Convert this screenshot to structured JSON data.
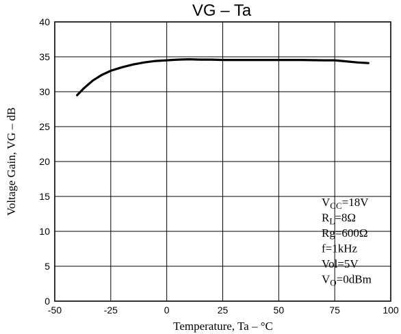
{
  "chart_data": {
    "type": "line",
    "title": "VG  –  Ta",
    "xlabel": "Temperature,  Ta  –  °C",
    "ylabel": "Voltage Gain,  VG  –  dB",
    "xlim": [
      -50,
      100
    ],
    "ylim": [
      0,
      40
    ],
    "xticks": [
      -50,
      -25,
      0,
      25,
      50,
      75,
      100
    ],
    "yticks": [
      0,
      5,
      10,
      15,
      20,
      25,
      30,
      35,
      40
    ],
    "grid": true,
    "series": [
      {
        "x": [
          -40,
          -37,
          -33,
          -29,
          -25,
          -20,
          -15,
          -10,
          -5,
          0,
          5,
          10,
          15,
          20,
          25,
          30,
          40,
          50,
          60,
          70,
          75,
          80,
          85,
          90
        ],
        "y": [
          29.5,
          30.5,
          31.6,
          32.4,
          33.0,
          33.5,
          33.9,
          34.2,
          34.4,
          34.5,
          34.6,
          34.65,
          34.6,
          34.6,
          34.55,
          34.55,
          34.55,
          34.55,
          34.55,
          34.5,
          34.5,
          34.35,
          34.2,
          34.1
        ]
      }
    ],
    "annotations": [
      {
        "main": "V",
        "sub": "CC",
        "rest": "=18V"
      },
      {
        "main": "R",
        "sub": "L",
        "rest": "=8Ω"
      },
      {
        "main": "Rg=600Ω",
        "sub": "",
        "rest": ""
      },
      {
        "main": "f=1kHz",
        "sub": "",
        "rest": ""
      },
      {
        "main": "Vol=5V",
        "sub": "",
        "rest": ""
      },
      {
        "main": "V",
        "sub": "O",
        "rest": "=0dBm"
      }
    ]
  }
}
